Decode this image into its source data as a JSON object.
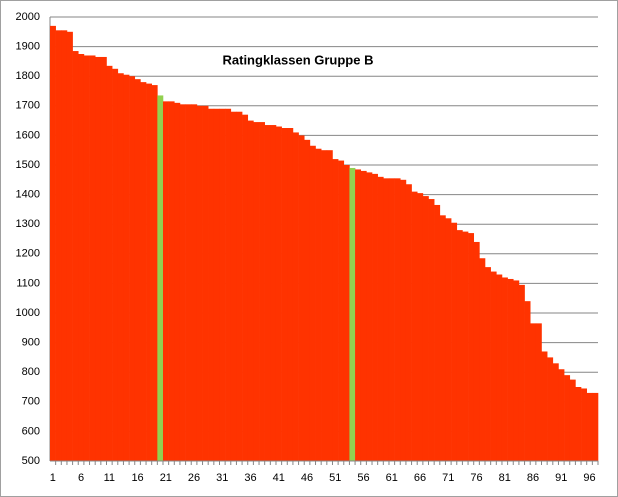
{
  "chart_data": {
    "type": "bar",
    "title": "Ratingklassen Gruppe B",
    "categories": [
      1,
      null,
      null,
      null,
      null,
      6,
      null,
      null,
      null,
      null,
      11,
      null,
      null,
      null,
      null,
      16,
      null,
      null,
      null,
      null,
      21,
      null,
      null,
      null,
      null,
      26,
      null,
      null,
      null,
      null,
      31,
      null,
      null,
      null,
      null,
      36,
      null,
      null,
      null,
      null,
      41,
      null,
      null,
      null,
      null,
      46,
      null,
      null,
      null,
      null,
      51,
      null,
      null,
      null,
      null,
      56,
      null,
      null,
      null,
      null,
      61,
      null,
      null,
      null,
      null,
      66,
      null,
      null,
      null,
      null,
      71,
      null,
      null,
      null,
      null,
      76,
      null,
      null,
      null,
      null,
      81,
      null,
      null,
      null,
      null,
      86,
      null,
      null,
      null,
      null,
      91,
      null,
      null,
      null,
      null,
      96,
      null
    ],
    "values": [
      1970,
      1955,
      1955,
      1950,
      1885,
      1875,
      1870,
      1870,
      1865,
      1865,
      1835,
      1825,
      1810,
      1805,
      1800,
      1790,
      1780,
      1775,
      1770,
      1735,
      1715,
      1715,
      1710,
      1705,
      1705,
      1705,
      1700,
      1700,
      1690,
      1690,
      1690,
      1690,
      1680,
      1680,
      1670,
      1650,
      1645,
      1645,
      1635,
      1635,
      1630,
      1625,
      1625,
      1610,
      1600,
      1585,
      1565,
      1555,
      1550,
      1550,
      1520,
      1515,
      1500,
      1490,
      1485,
      1480,
      1475,
      1470,
      1460,
      1455,
      1455,
      1455,
      1450,
      1435,
      1410,
      1405,
      1395,
      1385,
      1365,
      1330,
      1320,
      1305,
      1280,
      1275,
      1270,
      1240,
      1185,
      1155,
      1140,
      1130,
      1120,
      1115,
      1110,
      1095,
      1040,
      965,
      965,
      870,
      850,
      830,
      810,
      790,
      775,
      750,
      745,
      730,
      730
    ],
    "colors": [
      "#ff3300",
      "#ff3300",
      "#ff3300",
      "#ff3300",
      "#ff3300",
      "#ff3300",
      "#ff3300",
      "#ff3300",
      "#ff3300",
      "#ff3300",
      "#ff3300",
      "#ff3300",
      "#ff3300",
      "#ff3300",
      "#ff3300",
      "#ff3300",
      "#ff3300",
      "#ff3300",
      "#ff3300",
      "#92d050",
      "#ff3300",
      "#ff3300",
      "#ff3300",
      "#ff3300",
      "#ff3300",
      "#ff3300",
      "#ff3300",
      "#ff3300",
      "#ff3300",
      "#ff3300",
      "#ff3300",
      "#ff3300",
      "#ff3300",
      "#ff3300",
      "#ff3300",
      "#ff3300",
      "#ff3300",
      "#ff3300",
      "#ff3300",
      "#ff3300",
      "#ff3300",
      "#ff3300",
      "#ff3300",
      "#ff3300",
      "#ff3300",
      "#ff3300",
      "#ff3300",
      "#ff3300",
      "#ff3300",
      "#ff3300",
      "#ff3300",
      "#ff3300",
      "#ff3300",
      "#92d050",
      "#ff3300",
      "#ff3300",
      "#ff3300",
      "#ff3300",
      "#ff3300",
      "#ff3300",
      "#ff3300",
      "#ff3300",
      "#ff3300",
      "#ff3300",
      "#ff3300",
      "#ff3300",
      "#ff3300",
      "#ff3300",
      "#ff3300",
      "#ff3300",
      "#ff3300",
      "#ff3300",
      "#ff3300",
      "#ff3300",
      "#ff3300",
      "#ff3300",
      "#ff3300",
      "#ff3300",
      "#ff3300",
      "#ff3300",
      "#ff3300",
      "#ff3300",
      "#ff3300",
      "#ff3300",
      "#ff3300",
      "#ff3300",
      "#ff3300",
      "#ff3300",
      "#ff3300",
      "#ff3300",
      "#ff3300",
      "#ff3300",
      "#ff3300",
      "#ff3300",
      "#ff3300",
      "#ff3300",
      "#ff3300"
    ],
    "ylim": [
      500,
      2000
    ],
    "yticks": [
      500,
      600,
      700,
      800,
      900,
      1000,
      1100,
      1200,
      1300,
      1400,
      1500,
      1600,
      1700,
      1800,
      1900,
      2000
    ],
    "grid": true
  }
}
